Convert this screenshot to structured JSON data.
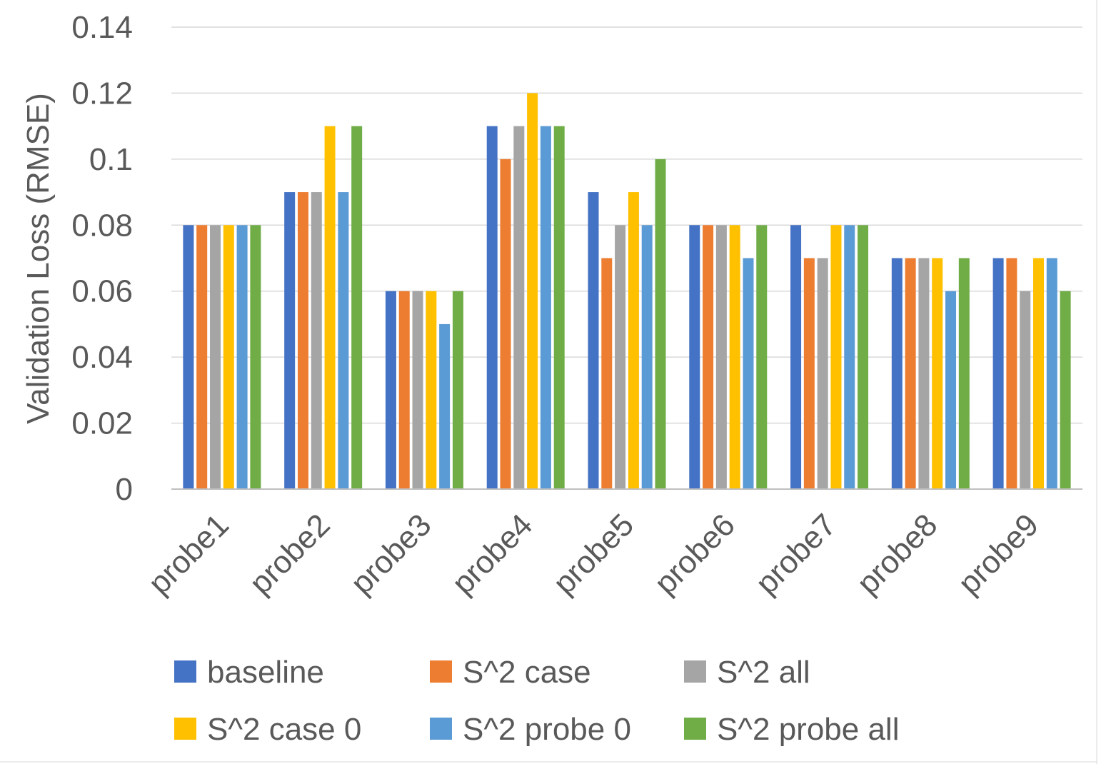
{
  "chart_data": {
    "type": "bar",
    "title": "",
    "xlabel": "",
    "ylabel": "Validation Loss (RMSE)",
    "ylim": [
      0,
      0.14
    ],
    "yticks": [
      "0",
      "0.02",
      "0.04",
      "0.06",
      "0.08",
      "0.1",
      "0.12",
      "0.14"
    ],
    "grid": true,
    "legend_position": "bottom",
    "categories": [
      "probe1",
      "probe2",
      "probe3",
      "probe4",
      "probe5",
      "probe6",
      "probe7",
      "probe8",
      "probe9"
    ],
    "series": [
      {
        "name": "baseline",
        "color": "#4472C4",
        "values": [
          0.08,
          0.09,
          0.06,
          0.11,
          0.09,
          0.08,
          0.08,
          0.07,
          0.07
        ]
      },
      {
        "name": "S^2 case",
        "color": "#ED7D31",
        "values": [
          0.08,
          0.09,
          0.06,
          0.1,
          0.07,
          0.08,
          0.07,
          0.07,
          0.07
        ]
      },
      {
        "name": "S^2 all",
        "color": "#A5A5A5",
        "values": [
          0.08,
          0.09,
          0.06,
          0.11,
          0.08,
          0.08,
          0.07,
          0.07,
          0.06
        ]
      },
      {
        "name": "S^2 case 0",
        "color": "#FFC000",
        "values": [
          0.08,
          0.11,
          0.06,
          0.12,
          0.09,
          0.08,
          0.08,
          0.07,
          0.07
        ]
      },
      {
        "name": "S^2 probe 0",
        "color": "#5B9BD5",
        "values": [
          0.08,
          0.09,
          0.05,
          0.11,
          0.08,
          0.07,
          0.08,
          0.06,
          0.07
        ]
      },
      {
        "name": "S^2 probe all",
        "color": "#70AD47",
        "values": [
          0.08,
          0.11,
          0.06,
          0.11,
          0.1,
          0.08,
          0.08,
          0.07,
          0.06
        ]
      }
    ]
  }
}
